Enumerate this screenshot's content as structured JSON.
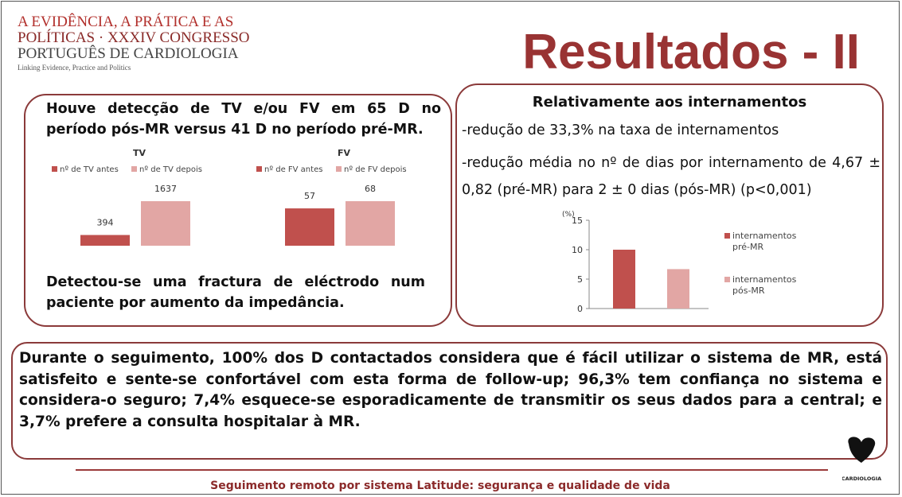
{
  "header": {
    "congress_lines": [
      "A EVIDÊNCIA, A PRÁTICA E AS",
      "POLÍTICAS · XXXIV CONGRESSO",
      "PORTUGUÊS DE CARDIOLOGIA"
    ],
    "tagline": "Linking Evidence, Practice and Politics",
    "title": "Resultados - II"
  },
  "left_panel": {
    "intro": "Houve detecção de TV e/ou FV em 65 D no período pós-MR versus 41 D no período pré-MR.",
    "charts": [
      {
        "type": "bar",
        "title": "TV",
        "series": [
          {
            "name": "nº de TV antes",
            "color": "#c0504d",
            "values": [
              394
            ]
          },
          {
            "name": "nº de TV depois",
            "color": "#e2a6a4",
            "values": [
              1637
            ]
          }
        ]
      },
      {
        "type": "bar",
        "title": "FV",
        "series": [
          {
            "name": "nº de FV antes",
            "color": "#c0504d",
            "values": [
              57
            ]
          },
          {
            "name": "nº de FV depois",
            "color": "#e2a6a4",
            "values": [
              68
            ]
          }
        ]
      }
    ],
    "conclusion": "Detectou-se uma fractura de eléctrodo num paciente por aumento da impedância."
  },
  "right_panel": {
    "heading": "Relativamente aos internamentos",
    "lines": [
      "-redução de 33,3% na taxa de internamentos",
      "-redução média no nº de dias por internamento de 4,67 ± 0,82 (pré-MR) para 2 ± 0 dias (pós-MR) (p<0,001)"
    ],
    "chart": {
      "type": "bar",
      "y_label": "(%)",
      "ylim": [
        0,
        15
      ],
      "yticks": [
        0,
        5,
        10,
        15
      ],
      "series": [
        {
          "name": "internamentos pré-MR",
          "color": "#c0504d",
          "values": [
            10
          ]
        },
        {
          "name": "internamentos pós-MR",
          "color": "#e2a6a4",
          "values": [
            6.7
          ]
        }
      ]
    }
  },
  "bottom_panel": {
    "text": "Durante o seguimento, 100% dos D contactados considera que é fácil utilizar o sistema de MR, está satisfeito e sente-se confortável com esta forma de follow-up; 96,3% tem confiança no sistema e considera-o seguro; 7,4% esquece-se esporadicamente de transmitir os seus dados para a central; e 3,7% prefere a consulta hospitalar à MR."
  },
  "logo": {
    "label": "CARDIOLOGIA"
  },
  "footer": {
    "text": "Seguimento remoto por sistema Latitude: segurança e qualidade de vida"
  }
}
